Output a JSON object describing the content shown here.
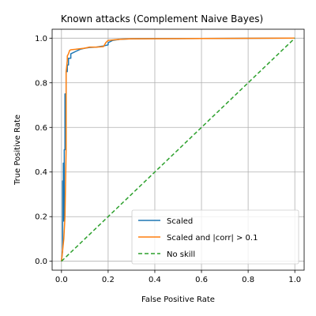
{
  "chart_data": {
    "type": "line",
    "title": "Known attacks (Complement Naive Bayes)",
    "xlabel": "False Positive Rate",
    "ylabel": "True Positive Rate",
    "xlim": [
      -0.04,
      1.04
    ],
    "ylim": [
      -0.04,
      1.04
    ],
    "xticks": [
      0.0,
      0.2,
      0.4,
      0.6,
      0.8,
      1.0
    ],
    "yticks": [
      0.0,
      0.2,
      0.4,
      0.6,
      0.8,
      1.0
    ],
    "xtick_labels": [
      "0.0",
      "0.2",
      "0.4",
      "0.6",
      "0.8",
      "1.0"
    ],
    "ytick_labels": [
      "0.0",
      "0.2",
      "0.4",
      "0.6",
      "0.8",
      "1.0"
    ],
    "grid": true,
    "legend_position": "lower-right",
    "series": [
      {
        "name": "Scaled",
        "color": "#1f77b4",
        "dash": "solid",
        "x": [
          0.0,
          0.005,
          0.005,
          0.008,
          0.008,
          0.01,
          0.01,
          0.012,
          0.012,
          0.015,
          0.015,
          0.02,
          0.02,
          0.025,
          0.025,
          0.03,
          0.03,
          0.04,
          0.04,
          0.05,
          0.06,
          0.08,
          0.1,
          0.12,
          0.15,
          0.18,
          0.2,
          0.2,
          0.22,
          0.25,
          0.3,
          0.4,
          0.5,
          1.0
        ],
        "y": [
          0.0,
          0.05,
          0.36,
          0.36,
          0.44,
          0.44,
          0.18,
          0.18,
          0.5,
          0.5,
          0.75,
          0.75,
          0.85,
          0.85,
          0.88,
          0.88,
          0.91,
          0.91,
          0.93,
          0.935,
          0.94,
          0.95,
          0.955,
          0.958,
          0.96,
          0.965,
          0.97,
          0.98,
          0.99,
          0.995,
          0.997,
          0.998,
          0.998,
          1.0
        ]
      },
      {
        "name": "Scaled and |corr| > 0.1",
        "color": "#ff7f0e",
        "dash": "solid",
        "x": [
          0.0,
          0.01,
          0.015,
          0.02,
          0.02,
          0.025,
          0.025,
          0.03,
          0.035,
          0.04,
          0.06,
          0.1,
          0.12,
          0.15,
          0.18,
          0.19,
          0.2,
          0.25,
          0.3,
          0.5,
          1.0
        ],
        "y": [
          0.0,
          0.1,
          0.2,
          0.5,
          0.85,
          0.9,
          0.92,
          0.93,
          0.945,
          0.948,
          0.95,
          0.955,
          0.96,
          0.96,
          0.962,
          0.98,
          0.99,
          0.995,
          0.997,
          0.998,
          1.0
        ]
      },
      {
        "name": "No skill",
        "color": "#2ca02c",
        "dash": "dashed",
        "x": [
          0.0,
          1.0
        ],
        "y": [
          0.0,
          1.0
        ]
      }
    ]
  }
}
